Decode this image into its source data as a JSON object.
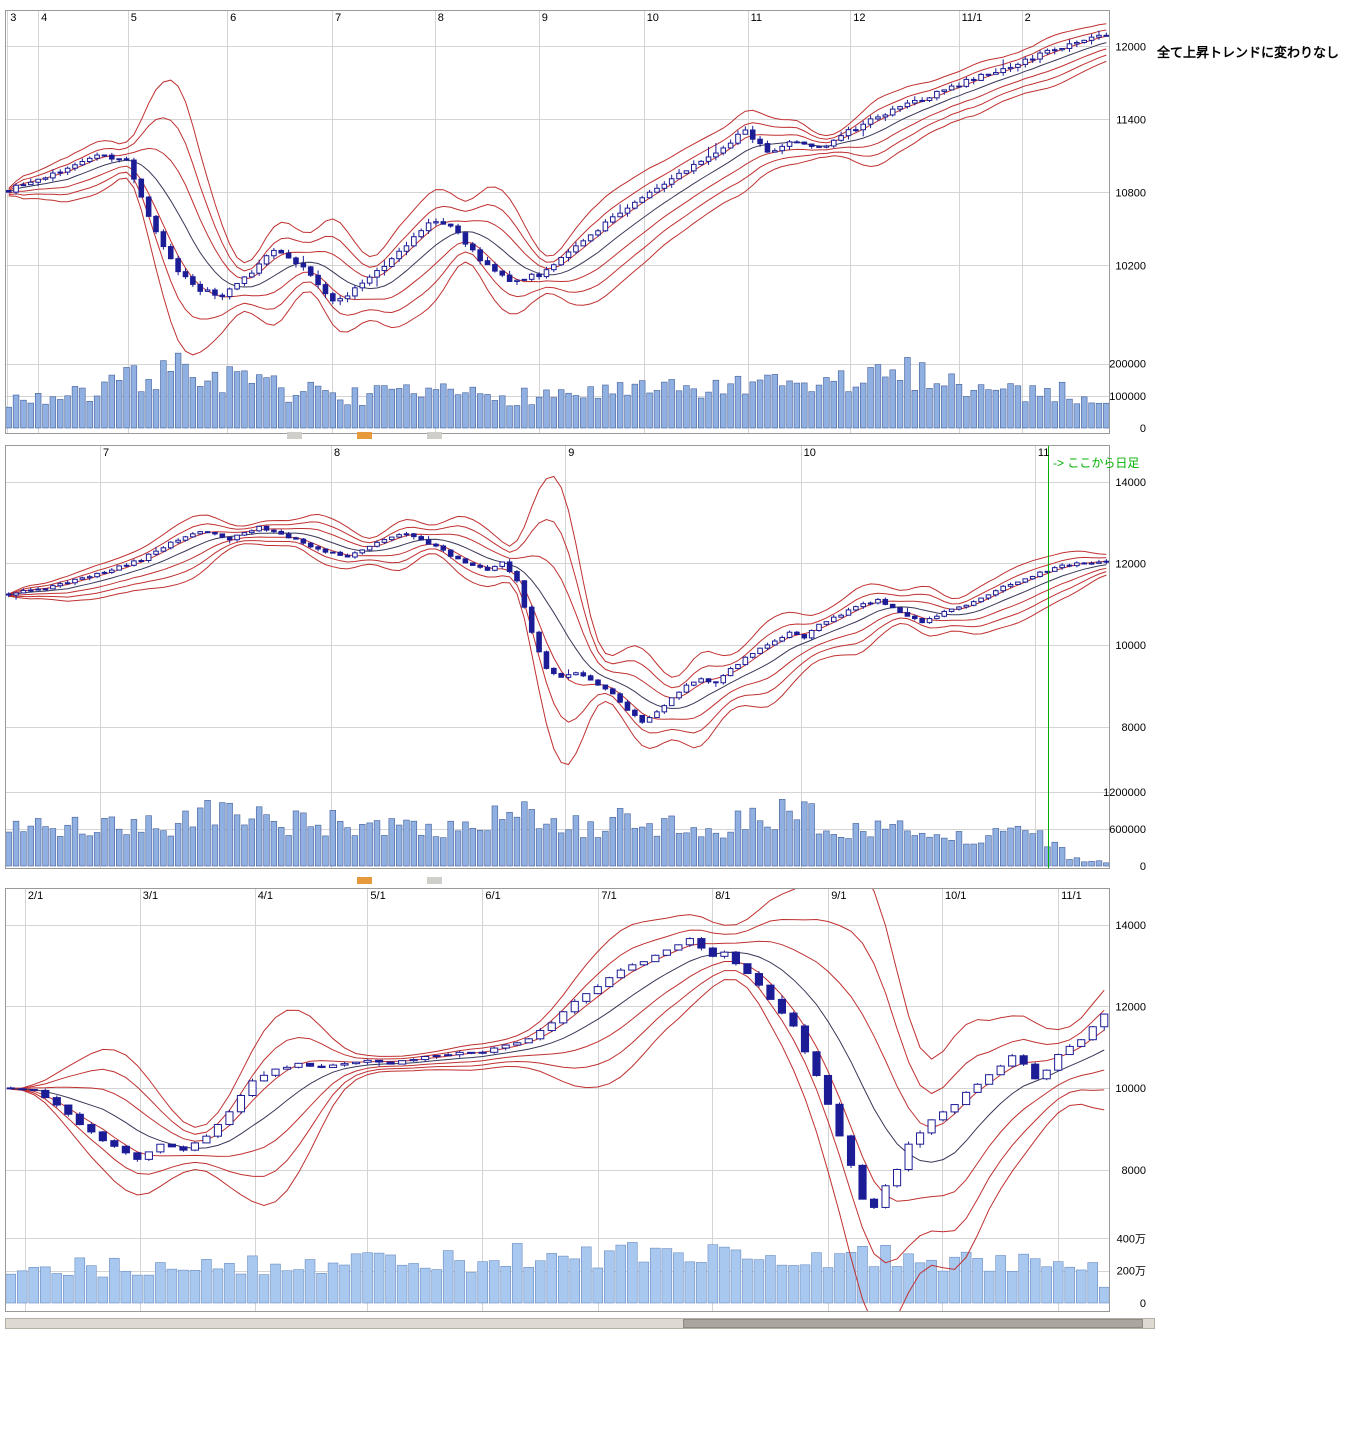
{
  "annotations": {
    "chart1_note": "全て上昇トレンドに変わりなし",
    "chart2_note": "-> ここから日足"
  },
  "colors": {
    "grid": "#d4d4d4",
    "border": "#9a9a9a",
    "band": "#c03030",
    "ma": "#383858",
    "candle_up": "#ffffff",
    "candle_down": "#1c1c96",
    "candle_stroke": "#1c1c96",
    "axis_text": "#000000",
    "marker_green": "#00b000"
  },
  "chart_data": [
    {
      "type": "candlestick",
      "name": "upper-weekly-chart",
      "x_labels": [
        {
          "label": "3",
          "f": 0.002
        },
        {
          "label": "4",
          "f": 0.03
        },
        {
          "label": "5",
          "f": 0.111
        },
        {
          "label": "6",
          "f": 0.201
        },
        {
          "label": "7",
          "f": 0.296
        },
        {
          "label": "8",
          "f": 0.389
        },
        {
          "label": "9",
          "f": 0.483
        },
        {
          "label": "10",
          "f": 0.578
        },
        {
          "label": "11",
          "f": 0.672
        },
        {
          "label": "12",
          "f": 0.765
        },
        {
          "label": "11/1",
          "f": 0.863
        },
        {
          "label": "2",
          "f": 0.92
        }
      ],
      "price_ticks": [
        12000,
        11400,
        10800,
        10200
      ],
      "price_axis": {
        "max": 12300,
        "min": 9480
      },
      "volume_ticks": [
        {
          "v": 200000,
          "label": "200000"
        },
        {
          "v": 100000,
          "label": "100000"
        },
        {
          "v": 0,
          "label": "0"
        }
      ],
      "volume_axis_max": 230000,
      "bars": 150,
      "price_anchors": [
        [
          0,
          10820
        ],
        [
          6,
          10950
        ],
        [
          12,
          11120
        ],
        [
          16,
          11060
        ],
        [
          18,
          10750
        ],
        [
          20,
          10480
        ],
        [
          23,
          10150
        ],
        [
          26,
          10000
        ],
        [
          29,
          9950
        ],
        [
          33,
          10150
        ],
        [
          36,
          10320
        ],
        [
          40,
          10180
        ],
        [
          44,
          9900
        ],
        [
          47,
          10000
        ],
        [
          52,
          10250
        ],
        [
          57,
          10560
        ],
        [
          60,
          10520
        ],
        [
          64,
          10250
        ],
        [
          68,
          10080
        ],
        [
          72,
          10120
        ],
        [
          76,
          10300
        ],
        [
          80,
          10500
        ],
        [
          84,
          10680
        ],
        [
          88,
          10840
        ],
        [
          92,
          10980
        ],
        [
          96,
          11120
        ],
        [
          100,
          11320
        ],
        [
          103,
          11120
        ],
        [
          106,
          11220
        ],
        [
          110,
          11160
        ],
        [
          114,
          11300
        ],
        [
          118,
          11420
        ],
        [
          122,
          11520
        ],
        [
          127,
          11640
        ],
        [
          132,
          11760
        ],
        [
          137,
          11860
        ],
        [
          142,
          11980
        ],
        [
          146,
          12050
        ],
        [
          149,
          12100
        ]
      ],
      "volume_anchors": [
        [
          0,
          90000
        ],
        [
          10,
          100000
        ],
        [
          18,
          160000
        ],
        [
          22,
          185000
        ],
        [
          27,
          165000
        ],
        [
          32,
          140000
        ],
        [
          40,
          110000
        ],
        [
          50,
          100000
        ],
        [
          60,
          105000
        ],
        [
          70,
          100000
        ],
        [
          80,
          110000
        ],
        [
          90,
          115000
        ],
        [
          100,
          125000
        ],
        [
          108,
          130000
        ],
        [
          116,
          150000
        ],
        [
          124,
          175000
        ],
        [
          132,
          120000
        ],
        [
          140,
          115000
        ],
        [
          149,
          95000
        ]
      ],
      "volume_fill": "#8fb0e0",
      "volume_stroke": "#44609c"
    },
    {
      "type": "candlestick",
      "name": "middle-weekly-chart",
      "x_labels": [
        {
          "label": "7",
          "f": 0.086
        },
        {
          "label": "8",
          "f": 0.295
        },
        {
          "label": "9",
          "f": 0.507
        },
        {
          "label": "10",
          "f": 0.72
        },
        {
          "label": "11",
          "f": 0.932
        }
      ],
      "price_ticks": [
        14000,
        12000,
        10000,
        8000
      ],
      "price_axis": {
        "max": 14900,
        "min": 6500
      },
      "volume_ticks": [
        {
          "v": 1200000,
          "label": "1200000"
        },
        {
          "v": 600000,
          "label": "600000"
        },
        {
          "v": 0,
          "label": "0"
        }
      ],
      "volume_axis_max": 1250000,
      "bars": 150,
      "marker_line": {
        "f": 0.944
      },
      "price_anchors": [
        [
          0,
          11250
        ],
        [
          5,
          11400
        ],
        [
          10,
          11650
        ],
        [
          14,
          11850
        ],
        [
          18,
          12100
        ],
        [
          22,
          12500
        ],
        [
          26,
          12800
        ],
        [
          30,
          12600
        ],
        [
          34,
          12900
        ],
        [
          38,
          12650
        ],
        [
          42,
          12350
        ],
        [
          46,
          12150
        ],
        [
          50,
          12500
        ],
        [
          54,
          12750
        ],
        [
          58,
          12400
        ],
        [
          62,
          12000
        ],
        [
          65,
          11850
        ],
        [
          67,
          12050
        ],
        [
          69,
          11600
        ],
        [
          71,
          10300
        ],
        [
          73,
          9400
        ],
        [
          75,
          9200
        ],
        [
          77,
          9350
        ],
        [
          80,
          9000
        ],
        [
          82,
          8800
        ],
        [
          84,
          8400
        ],
        [
          86,
          8100
        ],
        [
          88,
          8350
        ],
        [
          90,
          8700
        ],
        [
          92,
          9000
        ],
        [
          94,
          9200
        ],
        [
          96,
          9050
        ],
        [
          98,
          9400
        ],
        [
          100,
          9700
        ],
        [
          103,
          10000
        ],
        [
          106,
          10300
        ],
        [
          108,
          10200
        ],
        [
          110,
          10500
        ],
        [
          113,
          10750
        ],
        [
          116,
          11000
        ],
        [
          118,
          11100
        ],
        [
          121,
          10800
        ],
        [
          124,
          10550
        ],
        [
          127,
          10800
        ],
        [
          130,
          11000
        ],
        [
          133,
          11250
        ],
        [
          136,
          11500
        ],
        [
          139,
          11700
        ],
        [
          142,
          11900
        ],
        [
          145,
          12000
        ],
        [
          149,
          12050
        ]
      ],
      "volume_anchors": [
        [
          0,
          620000
        ],
        [
          8,
          660000
        ],
        [
          16,
          600000
        ],
        [
          24,
          700000
        ],
        [
          30,
          1120000
        ],
        [
          34,
          800000
        ],
        [
          40,
          680000
        ],
        [
          46,
          720000
        ],
        [
          52,
          640000
        ],
        [
          58,
          560000
        ],
        [
          64,
          600000
        ],
        [
          68,
          950000
        ],
        [
          72,
          700000
        ],
        [
          78,
          660000
        ],
        [
          84,
          720000
        ],
        [
          90,
          620000
        ],
        [
          96,
          580000
        ],
        [
          102,
          820000
        ],
        [
          107,
          900000
        ],
        [
          112,
          640000
        ],
        [
          118,
          580000
        ],
        [
          124,
          560000
        ],
        [
          130,
          520000
        ],
        [
          136,
          500000
        ],
        [
          141,
          450000
        ],
        [
          144,
          120000
        ],
        [
          147,
          70000
        ],
        [
          149,
          60000
        ]
      ],
      "volume_fill": "#8fb0e0",
      "volume_stroke": "#44609c"
    },
    {
      "type": "candlestick",
      "name": "lower-weekly-chart",
      "x_labels": [
        {
          "label": "2/1",
          "f": 0.018
        },
        {
          "label": "3/1",
          "f": 0.122
        },
        {
          "label": "4/1",
          "f": 0.226
        },
        {
          "label": "5/1",
          "f": 0.328
        },
        {
          "label": "6/1",
          "f": 0.432
        },
        {
          "label": "7/1",
          "f": 0.537
        },
        {
          "label": "8/1",
          "f": 0.64
        },
        {
          "label": "9/1",
          "f": 0.745
        },
        {
          "label": "10/1",
          "f": 0.848
        },
        {
          "label": "11/1",
          "f": 0.953
        }
      ],
      "price_ticks": [
        14000,
        12000,
        10000,
        8000
      ],
      "price_axis": {
        "max": 14900,
        "min": 6500
      },
      "volume_ticks": [
        {
          "v": 4000000,
          "label": "400万"
        },
        {
          "v": 2000000,
          "label": "200万"
        },
        {
          "v": 0,
          "label": "0"
        }
      ],
      "volume_axis_max": 4400000,
      "bars": 96,
      "price_anchors": [
        [
          0,
          10000
        ],
        [
          2,
          9950
        ],
        [
          4,
          9600
        ],
        [
          6,
          9100
        ],
        [
          8,
          8700
        ],
        [
          10,
          8400
        ],
        [
          11,
          8250
        ],
        [
          13,
          8650
        ],
        [
          15,
          8500
        ],
        [
          17,
          8800
        ],
        [
          19,
          9400
        ],
        [
          21,
          10200
        ],
        [
          23,
          10450
        ],
        [
          25,
          10600
        ],
        [
          27,
          10500
        ],
        [
          29,
          10600
        ],
        [
          31,
          10700
        ],
        [
          33,
          10600
        ],
        [
          35,
          10700
        ],
        [
          37,
          10800
        ],
        [
          39,
          10850
        ],
        [
          41,
          10900
        ],
        [
          43,
          11050
        ],
        [
          45,
          11200
        ],
        [
          47,
          11600
        ],
        [
          49,
          12100
        ],
        [
          51,
          12500
        ],
        [
          53,
          12900
        ],
        [
          55,
          13100
        ],
        [
          57,
          13400
        ],
        [
          59,
          13650
        ],
        [
          61,
          13200
        ],
        [
          62,
          13350
        ],
        [
          64,
          12800
        ],
        [
          66,
          12200
        ],
        [
          68,
          11500
        ],
        [
          70,
          10300
        ],
        [
          71,
          9600
        ],
        [
          72,
          8800
        ],
        [
          73,
          8100
        ],
        [
          74,
          7300
        ],
        [
          75,
          7100
        ],
        [
          76,
          7600
        ],
        [
          77,
          8000
        ],
        [
          78,
          8600
        ],
        [
          80,
          9200
        ],
        [
          82,
          9600
        ],
        [
          83,
          9900
        ],
        [
          85,
          10300
        ],
        [
          87,
          10800
        ],
        [
          88,
          10600
        ],
        [
          89,
          10200
        ],
        [
          90,
          10450
        ],
        [
          91,
          10800
        ],
        [
          92,
          11000
        ],
        [
          93,
          11200
        ],
        [
          94,
          11500
        ],
        [
          95,
          11800
        ]
      ],
      "volume_anchors": [
        [
          0,
          2300000
        ],
        [
          4,
          2600000
        ],
        [
          8,
          2250000
        ],
        [
          12,
          2350000
        ],
        [
          16,
          2300000
        ],
        [
          20,
          2450000
        ],
        [
          24,
          2550000
        ],
        [
          28,
          2400000
        ],
        [
          32,
          2500000
        ],
        [
          36,
          2550000
        ],
        [
          40,
          2650000
        ],
        [
          44,
          2800000
        ],
        [
          48,
          2750000
        ],
        [
          52,
          2900000
        ],
        [
          56,
          3100000
        ],
        [
          58,
          3500000
        ],
        [
          60,
          2900000
        ],
        [
          62,
          3300000
        ],
        [
          65,
          2800000
        ],
        [
          68,
          2700000
        ],
        [
          70,
          2900000
        ],
        [
          73,
          3000000
        ],
        [
          75,
          2950000
        ],
        [
          78,
          2600000
        ],
        [
          80,
          2300000
        ],
        [
          82,
          2250000
        ],
        [
          85,
          2700000
        ],
        [
          87,
          2500000
        ],
        [
          89,
          2300000
        ],
        [
          91,
          2200000
        ],
        [
          93,
          2100000
        ],
        [
          94,
          1900000
        ],
        [
          95,
          800000
        ]
      ],
      "volume_fill": "#a8c8f0",
      "volume_stroke": "#6a8cc0"
    }
  ]
}
